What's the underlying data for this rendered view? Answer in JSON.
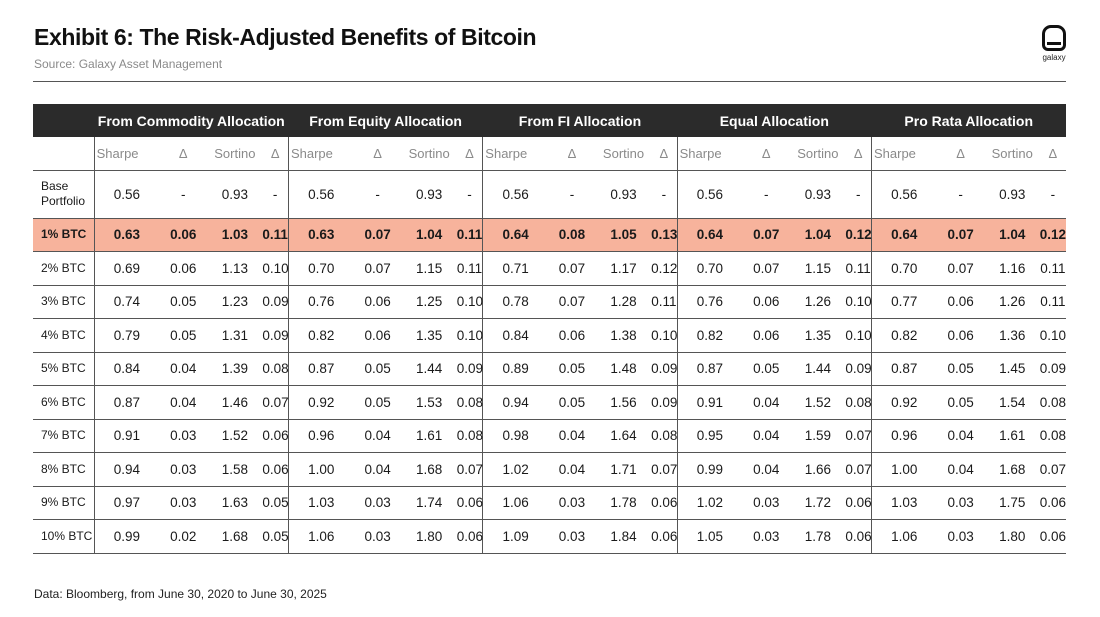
{
  "header": {
    "title": "Exhibit 6: The Risk-Adjusted Benefits of Bitcoin",
    "source": "Source: Galaxy Asset Management"
  },
  "logo": {
    "text": "galaxy",
    "icon": "galaxy-logo-icon"
  },
  "table": {
    "groups": [
      "From Commodity Allocation",
      "From Equity Allocation",
      "From FI Allocation",
      "Equal Allocation",
      "Pro Rata Allocation"
    ],
    "subheaders": [
      "Sharpe",
      "Δ",
      "Sortino",
      "Δ"
    ],
    "rows": [
      {
        "label": "Base Portfolio",
        "values": [
          "0.56",
          "-",
          "0.93",
          "-",
          "0.56",
          "-",
          "0.93",
          "-",
          "0.56",
          "-",
          "0.93",
          "-",
          "0.56",
          "-",
          "0.93",
          "-",
          "0.56",
          "-",
          "0.93",
          "-"
        ]
      },
      {
        "label": "1% BTC",
        "values": [
          "0.63",
          "0.06",
          "1.03",
          "0.11",
          "0.63",
          "0.07",
          "1.04",
          "0.11",
          "0.64",
          "0.08",
          "1.05",
          "0.13",
          "0.64",
          "0.07",
          "1.04",
          "0.12",
          "0.64",
          "0.07",
          "1.04",
          "0.12"
        ]
      },
      {
        "label": "2% BTC",
        "values": [
          "0.69",
          "0.06",
          "1.13",
          "0.10",
          "0.70",
          "0.07",
          "1.15",
          "0.11",
          "0.71",
          "0.07",
          "1.17",
          "0.12",
          "0.70",
          "0.07",
          "1.15",
          "0.11",
          "0.70",
          "0.07",
          "1.16",
          "0.11"
        ]
      },
      {
        "label": "3% BTC",
        "values": [
          "0.74",
          "0.05",
          "1.23",
          "0.09",
          "0.76",
          "0.06",
          "1.25",
          "0.10",
          "0.78",
          "0.07",
          "1.28",
          "0.11",
          "0.76",
          "0.06",
          "1.26",
          "0.10",
          "0.77",
          "0.06",
          "1.26",
          "0.11"
        ]
      },
      {
        "label": "4% BTC",
        "values": [
          "0.79",
          "0.05",
          "1.31",
          "0.09",
          "0.82",
          "0.06",
          "1.35",
          "0.10",
          "0.84",
          "0.06",
          "1.38",
          "0.10",
          "0.82",
          "0.06",
          "1.35",
          "0.10",
          "0.82",
          "0.06",
          "1.36",
          "0.10"
        ]
      },
      {
        "label": "5% BTC",
        "values": [
          "0.84",
          "0.04",
          "1.39",
          "0.08",
          "0.87",
          "0.05",
          "1.44",
          "0.09",
          "0.89",
          "0.05",
          "1.48",
          "0.09",
          "0.87",
          "0.05",
          "1.44",
          "0.09",
          "0.87",
          "0.05",
          "1.45",
          "0.09"
        ]
      },
      {
        "label": "6% BTC",
        "values": [
          "0.87",
          "0.04",
          "1.46",
          "0.07",
          "0.92",
          "0.05",
          "1.53",
          "0.08",
          "0.94",
          "0.05",
          "1.56",
          "0.09",
          "0.91",
          "0.04",
          "1.52",
          "0.08",
          "0.92",
          "0.05",
          "1.54",
          "0.08"
        ]
      },
      {
        "label": "7% BTC",
        "values": [
          "0.91",
          "0.03",
          "1.52",
          "0.06",
          "0.96",
          "0.04",
          "1.61",
          "0.08",
          "0.98",
          "0.04",
          "1.64",
          "0.08",
          "0.95",
          "0.04",
          "1.59",
          "0.07",
          "0.96",
          "0.04",
          "1.61",
          "0.08"
        ]
      },
      {
        "label": "8% BTC",
        "values": [
          "0.94",
          "0.03",
          "1.58",
          "0.06",
          "1.00",
          "0.04",
          "1.68",
          "0.07",
          "1.02",
          "0.04",
          "1.71",
          "0.07",
          "0.99",
          "0.04",
          "1.66",
          "0.07",
          "1.00",
          "0.04",
          "1.68",
          "0.07"
        ]
      },
      {
        "label": "9% BTC",
        "values": [
          "0.97",
          "0.03",
          "1.63",
          "0.05",
          "1.03",
          "0.03",
          "1.74",
          "0.06",
          "1.06",
          "0.03",
          "1.78",
          "0.06",
          "1.02",
          "0.03",
          "1.72",
          "0.06",
          "1.03",
          "0.03",
          "1.75",
          "0.06"
        ]
      },
      {
        "label": "10% BTC",
        "values": [
          "0.99",
          "0.02",
          "1.68",
          "0.05",
          "1.06",
          "0.03",
          "1.80",
          "0.06",
          "1.09",
          "0.03",
          "1.84",
          "0.06",
          "1.05",
          "0.03",
          "1.78",
          "0.06",
          "1.06",
          "0.03",
          "1.80",
          "0.06"
        ]
      }
    ],
    "highlight_row_index": 1,
    "colors": {
      "header_bg": "#2b2b2b",
      "highlight_bg": "#f7b39c"
    }
  },
  "footnote": "Data: Bloomberg, from June 30, 2020 to June 30, 2025"
}
